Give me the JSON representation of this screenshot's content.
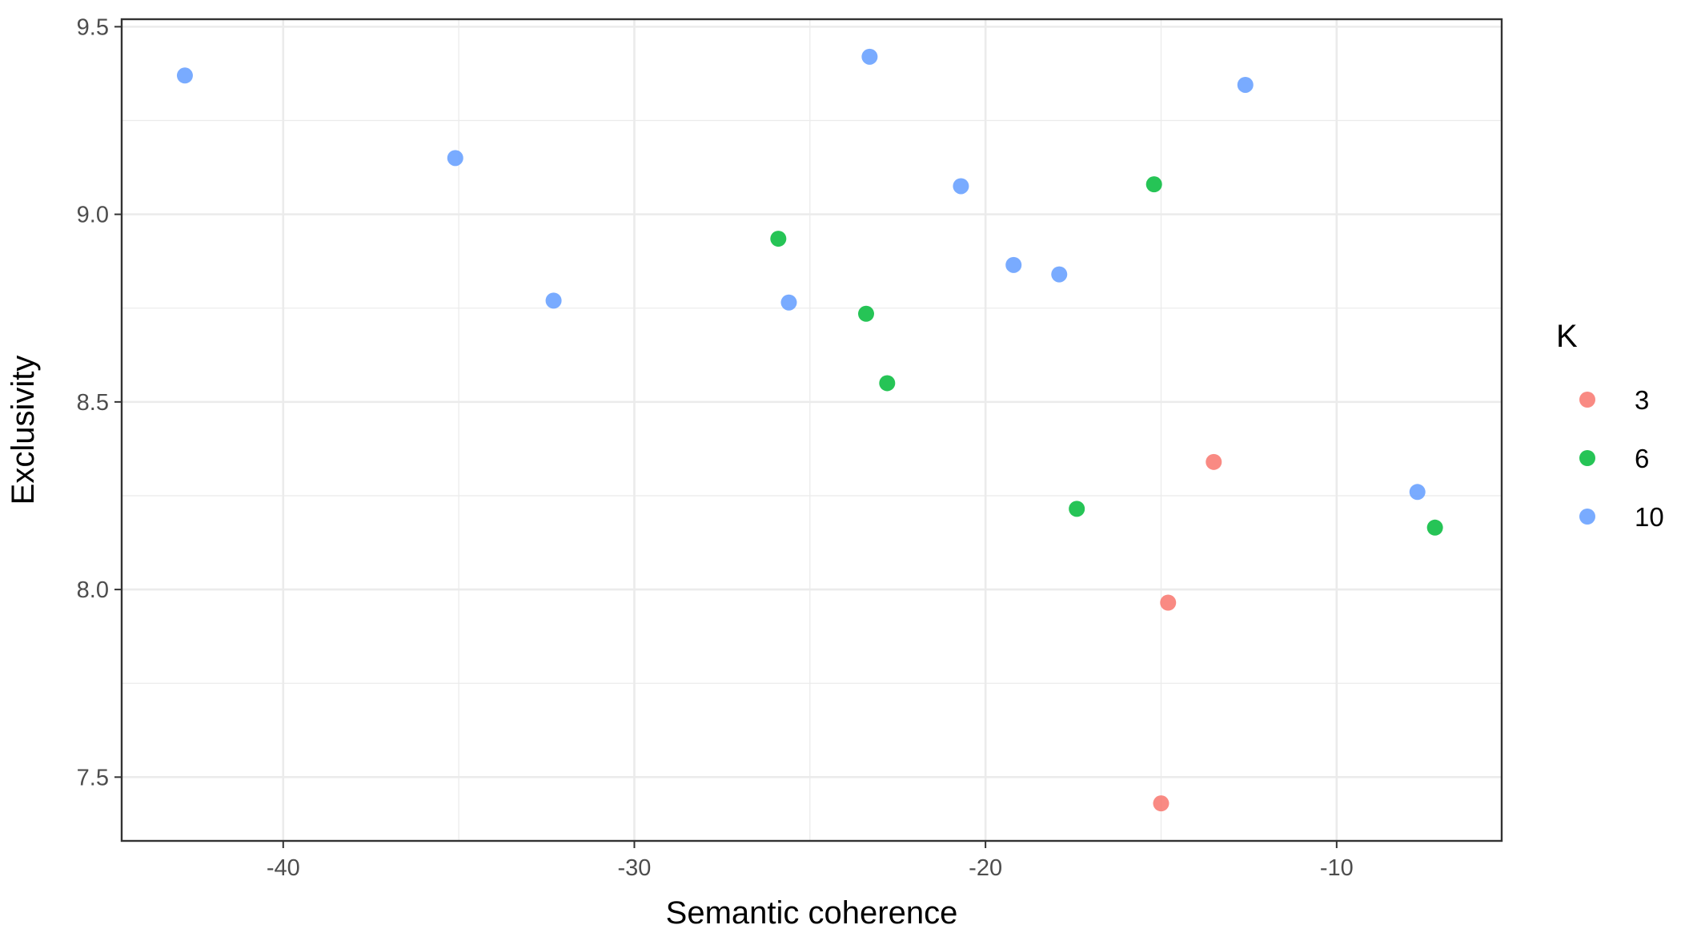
{
  "chart_data": {
    "type": "scatter",
    "title": "",
    "xlabel": "Semantic coherence",
    "ylabel": "Exclusivity",
    "xlim": [
      -44.6,
      -5.3
    ],
    "ylim": [
      7.33,
      9.52
    ],
    "x_ticks": [
      -40,
      -30,
      -20,
      -10
    ],
    "x_tick_labels": [
      "-40",
      "-30",
      "-20",
      "-10"
    ],
    "y_ticks": [
      7.5,
      8.0,
      8.5,
      9.0,
      9.5
    ],
    "y_tick_labels": [
      "7.5",
      "8.0",
      "8.5",
      "9.0",
      "9.5"
    ],
    "grid": true,
    "legend": {
      "title": "K",
      "position": "right",
      "entries": [
        {
          "label": "3",
          "color": "#f8766d"
        },
        {
          "label": "6",
          "color": "#00ba38"
        },
        {
          "label": "10",
          "color": "#619cff"
        }
      ]
    },
    "series": [
      {
        "name": "3",
        "color": "#f8766d",
        "points": [
          {
            "x": -13.5,
            "y": 8.34
          },
          {
            "x": -14.8,
            "y": 7.965
          },
          {
            "x": -15.0,
            "y": 7.43
          }
        ]
      },
      {
        "name": "6",
        "color": "#00ba38",
        "points": [
          {
            "x": -15.2,
            "y": 9.08
          },
          {
            "x": -25.9,
            "y": 8.935
          },
          {
            "x": -23.4,
            "y": 8.735
          },
          {
            "x": -22.8,
            "y": 8.55
          },
          {
            "x": -17.4,
            "y": 8.215
          },
          {
            "x": -7.2,
            "y": 8.165
          }
        ]
      },
      {
        "name": "10",
        "color": "#619cff",
        "points": [
          {
            "x": -42.8,
            "y": 9.37
          },
          {
            "x": -23.3,
            "y": 9.42
          },
          {
            "x": -12.6,
            "y": 9.345
          },
          {
            "x": -35.1,
            "y": 9.15
          },
          {
            "x": -20.7,
            "y": 9.075
          },
          {
            "x": -19.2,
            "y": 8.865
          },
          {
            "x": -17.9,
            "y": 8.84
          },
          {
            "x": -32.3,
            "y": 8.77
          },
          {
            "x": -25.6,
            "y": 8.765
          },
          {
            "x": -7.7,
            "y": 8.26
          }
        ]
      }
    ]
  }
}
